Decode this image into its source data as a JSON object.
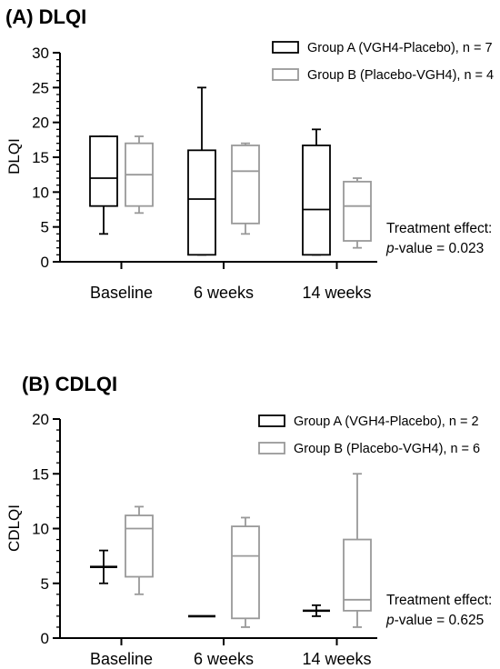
{
  "chart_data": [
    {
      "type": "box",
      "title": "(A) DLQI",
      "ylabel": "DLQI",
      "xlabel": "",
      "ylim": [
        0,
        30
      ],
      "ytick_step": 5,
      "grid": false,
      "legend_position": "top-right",
      "categories": [
        "Baseline",
        "6 weeks",
        "14 weeks"
      ],
      "series": [
        {
          "name": "Group A (VGH4-Placebo), n = 7",
          "color": "#000000",
          "boxes": [
            {
              "min": 4,
              "q1": 8,
              "median": 12,
              "q3": 18,
              "max": 18
            },
            {
              "min": 1,
              "q1": 1,
              "median": 9,
              "q3": 16,
              "max": 25
            },
            {
              "min": 1,
              "q1": 1,
              "median": 7.5,
              "q3": 16.7,
              "max": 19
            }
          ]
        },
        {
          "name": "Group B (Placebo-VGH4), n = 4",
          "color": "#999999",
          "boxes": [
            {
              "min": 7,
              "q1": 8,
              "median": 12.5,
              "q3": 17,
              "max": 18
            },
            {
              "min": 4,
              "q1": 5.5,
              "median": 13,
              "q3": 16.7,
              "max": 17
            },
            {
              "min": 2,
              "q1": 3,
              "median": 8,
              "q3": 11.5,
              "max": 12
            }
          ]
        }
      ],
      "annotation": {
        "line1": "Treatment effect:",
        "p_label": "p",
        "p_rest": "-value = 0.023"
      }
    },
    {
      "type": "box",
      "title": "(B) CDLQI",
      "ylabel": "CDLQI",
      "xlabel": "",
      "ylim": [
        0,
        20
      ],
      "ytick_step": 5,
      "grid": false,
      "legend_position": "top-right",
      "categories": [
        "Baseline",
        "6 weeks",
        "14 weeks"
      ],
      "series": [
        {
          "name": "Group A (VGH4-Placebo), n = 2",
          "color": "#000000",
          "boxes": [
            {
              "min": 5,
              "q1": 6.5,
              "median": 6.5,
              "q3": 6.5,
              "max": 8
            },
            {
              "min": 2,
              "q1": 2,
              "median": 2,
              "q3": 2,
              "max": 2
            },
            {
              "min": 2,
              "q1": 2.5,
              "median": 2.5,
              "q3": 2.5,
              "max": 3
            }
          ]
        },
        {
          "name": "Group B (Placebo-VGH4), n = 6",
          "color": "#999999",
          "boxes": [
            {
              "min": 4,
              "q1": 5.6,
              "median": 10,
              "q3": 11.2,
              "max": 12
            },
            {
              "min": 1,
              "q1": 1.8,
              "median": 7.5,
              "q3": 10.2,
              "max": 11
            },
            {
              "min": 1,
              "q1": 2.5,
              "median": 3.5,
              "q3": 9,
              "max": 15
            }
          ]
        }
      ],
      "annotation": {
        "line1": "Treatment effect:",
        "p_label": "p",
        "p_rest": "-value = 0.625"
      }
    }
  ]
}
